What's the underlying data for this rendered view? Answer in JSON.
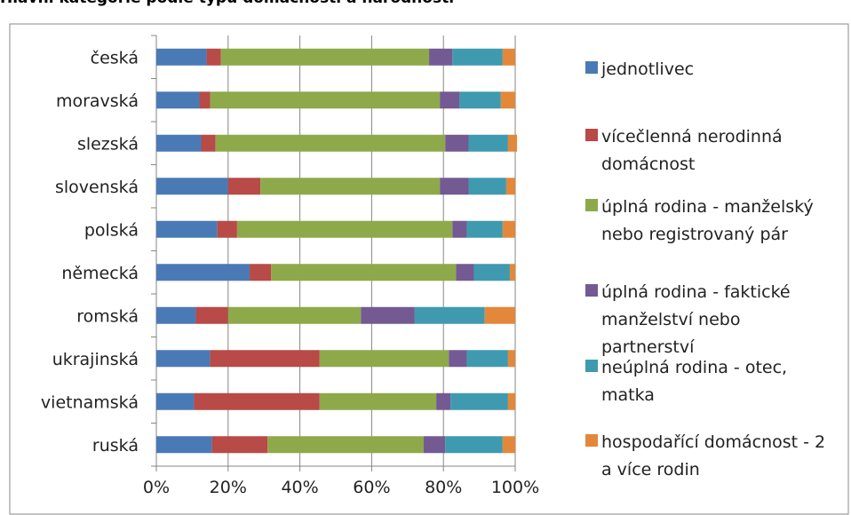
{
  "chart_data": {
    "type": "bar",
    "orientation": "horizontal",
    "stacked": true,
    "percent": true,
    "title": "Hlavní kategorie podle typu domácností a národnosti",
    "xlabel": "",
    "ylabel": "",
    "xlim": [
      0,
      100
    ],
    "x_ticks": [
      "0%",
      "20%",
      "40%",
      "60%",
      "80%",
      "100%"
    ],
    "grid": true,
    "legend_position": "right",
    "categories": [
      "česká",
      "moravská",
      "slezská",
      "slovenská",
      "polská",
      "německá",
      "romská",
      "ukrajinská",
      "vietnamská",
      "ruská"
    ],
    "series": [
      {
        "name": "jednotlivec",
        "legend_lines": [
          "jednotlivec"
        ],
        "color": "#4a7ab5",
        "values": [
          14,
          12,
          12.5,
          20,
          17,
          26,
          11,
          15,
          10.5,
          15.5
        ]
      },
      {
        "name": "vícečlenná nerodinná domácnost",
        "legend_lines": [
          "vícečlenná nerodinná",
          "domácnost"
        ],
        "color": "#b84a47",
        "values": [
          4,
          3,
          4,
          9,
          5.5,
          6,
          9,
          30.5,
          35,
          15.5
        ]
      },
      {
        "name": "úplná rodina - manželský nebo registrovaný pár",
        "legend_lines": [
          "úplná rodina - manželský",
          "nebo registrovaný pár"
        ],
        "color": "#8ea94a",
        "values": [
          58,
          64,
          64,
          50,
          60,
          51.5,
          37,
          36,
          32.5,
          43.5
        ]
      },
      {
        "name": "úplná rodina - faktické manželství nebo partnerství",
        "legend_lines": [
          "úplná rodina - faktické",
          "manželství nebo",
          "partnerství"
        ],
        "color": "#735a92",
        "values": [
          6.5,
          5.5,
          6.5,
          8,
          4,
          5,
          15,
          5,
          4,
          6
        ]
      },
      {
        "name": "neúplná rodina - otec, matka",
        "legend_lines": [
          "neúplná rodina - otec,",
          "matka"
        ],
        "color": "#3f9aaf",
        "values": [
          14,
          11.5,
          11,
          10.5,
          10,
          10,
          19.5,
          11.5,
          16,
          16
        ]
      },
      {
        "name": "hospodařící domácnost - 2 a více rodin",
        "legend_lines": [
          "hospodařící domácnost - 2",
          "a více rodin"
        ],
        "color": "#e3883a",
        "values": [
          3.5,
          4,
          2.5,
          2.5,
          3.5,
          1.5,
          8.5,
          2,
          2,
          3.5
        ]
      }
    ]
  }
}
